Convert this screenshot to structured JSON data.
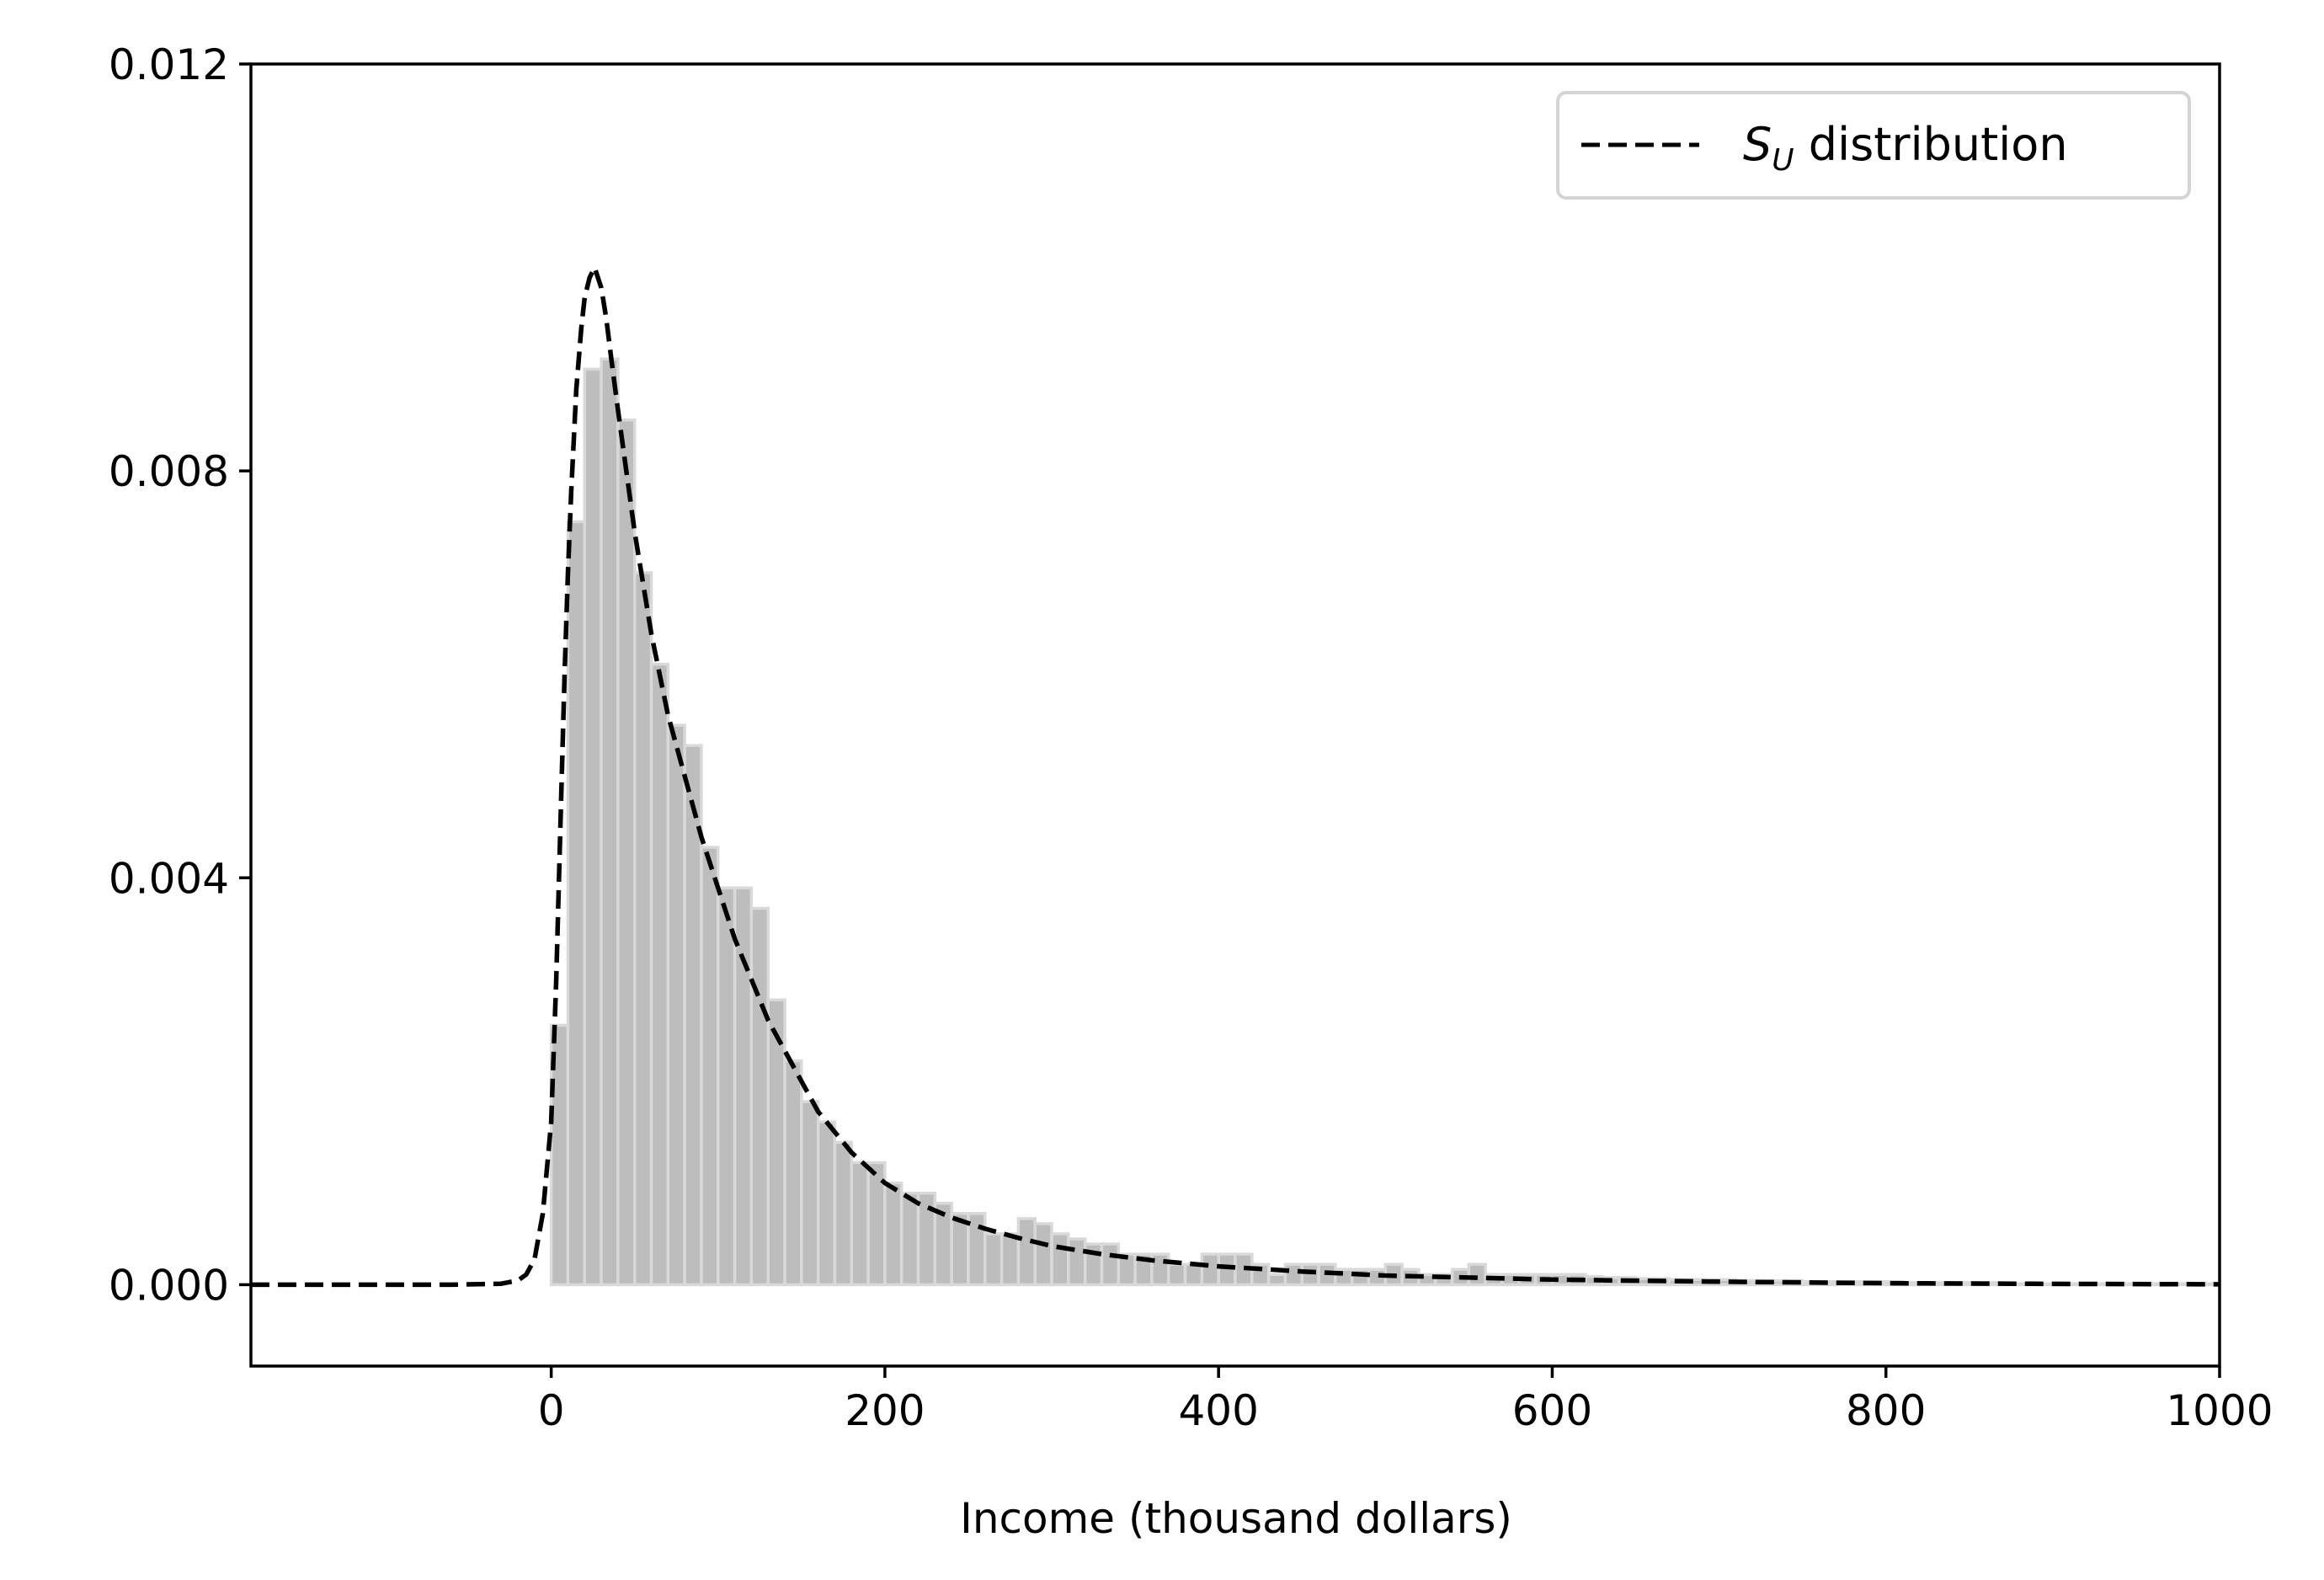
{
  "chart_data": {
    "type": "bar",
    "title": "",
    "xlabel": "Income (thousand dollars)",
    "ylabel": "",
    "xlim": [
      -180,
      1000
    ],
    "ylim": [
      -0.0008,
      0.012
    ],
    "xticks": [
      0,
      200,
      400,
      600,
      800,
      1000
    ],
    "xtick_labels": [
      "0",
      "200",
      "400",
      "600",
      "800",
      "1000"
    ],
    "yticks": [
      0.0,
      0.004,
      0.008,
      0.012
    ],
    "ytick_labels": [
      "0.000",
      "0.004",
      "0.008",
      "0.012"
    ],
    "grid": false,
    "legend": {
      "placement": "top-right",
      "entries": [
        {
          "symbol": "S",
          "subscript": "U",
          "text": " distribution",
          "style": "dashed",
          "color": "#000000"
        }
      ]
    },
    "histogram": {
      "bin_start": 0,
      "bin_width": 10,
      "fill_color": "#bdbdbd",
      "edge_color": "#d9d9d9",
      "values": [
        0.00255,
        0.0075,
        0.009,
        0.0091,
        0.0085,
        0.007,
        0.0061,
        0.0055,
        0.0053,
        0.0043,
        0.0039,
        0.0039,
        0.0037,
        0.0028,
        0.0022,
        0.0018,
        0.0016,
        0.0014,
        0.0012,
        0.0012,
        0.001,
        0.0009,
        0.0009,
        0.0008,
        0.0007,
        0.0007,
        0.0005,
        0.0005,
        0.00065,
        0.0006,
        0.0005,
        0.00045,
        0.0004,
        0.0004,
        0.0003,
        0.0003,
        0.0003,
        0.0002,
        0.0002,
        0.0003,
        0.0003,
        0.0003,
        0.0002,
        0.0001,
        0.0002,
        0.0002,
        0.0002,
        0.00015,
        0.00015,
        0.00015,
        0.0002,
        0.00015,
        0.0001,
        0.0001,
        0.00015,
        0.0002,
        0.0001,
        0.0001,
        0.0001,
        0.0001,
        0.0001,
        0.0001,
        8e-05,
        7e-05,
        7e-05,
        6e-05,
        6e-05,
        5e-05,
        5e-05,
        5e-05,
        5e-05,
        4e-05,
        4e-05,
        4e-05,
        4e-05,
        3e-05,
        3e-05,
        3e-05,
        3e-05,
        3e-05,
        3e-05,
        2e-05,
        2e-05,
        2e-05,
        2e-05,
        2e-05,
        2e-05,
        1e-05,
        1e-05,
        1e-05,
        1e-05,
        1e-05,
        1e-05,
        1e-05,
        1e-05,
        1e-05,
        1e-05,
        1e-05,
        1e-05,
        1e-05
      ]
    },
    "series": [
      {
        "style": "dashed",
        "color": "#000000",
        "x": [
          -180,
          -60,
          -30,
          -20,
          -15,
          -10,
          -5,
          0,
          3,
          6,
          8,
          10,
          12,
          15,
          18,
          20,
          23,
          26,
          28,
          30,
          33,
          36,
          40,
          45,
          50,
          60,
          70,
          80,
          90,
          100,
          110,
          120,
          130,
          140,
          150,
          160,
          170,
          180,
          200,
          220,
          240,
          260,
          280,
          300,
          330,
          360,
          400,
          450,
          500,
          550,
          600,
          700,
          800,
          900,
          1000
        ],
        "y": [
          0,
          0,
          1e-05,
          4e-05,
          0.0001,
          0.00025,
          0.0007,
          0.0016,
          0.003,
          0.0048,
          0.006,
          0.007,
          0.0078,
          0.0088,
          0.0094,
          0.0097,
          0.0099,
          0.01,
          0.0099,
          0.0098,
          0.0095,
          0.0091,
          0.0086,
          0.008,
          0.0074,
          0.0064,
          0.0056,
          0.005,
          0.0044,
          0.0039,
          0.0034,
          0.003,
          0.0026,
          0.0023,
          0.002,
          0.0017,
          0.0015,
          0.0013,
          0.001,
          0.0008,
          0.00066,
          0.00055,
          0.00046,
          0.00038,
          0.0003,
          0.00024,
          0.00018,
          0.00013,
          9e-05,
          7e-05,
          5e-05,
          3e-05,
          1.5e-05,
          8e-06,
          4e-06
        ]
      }
    ]
  }
}
